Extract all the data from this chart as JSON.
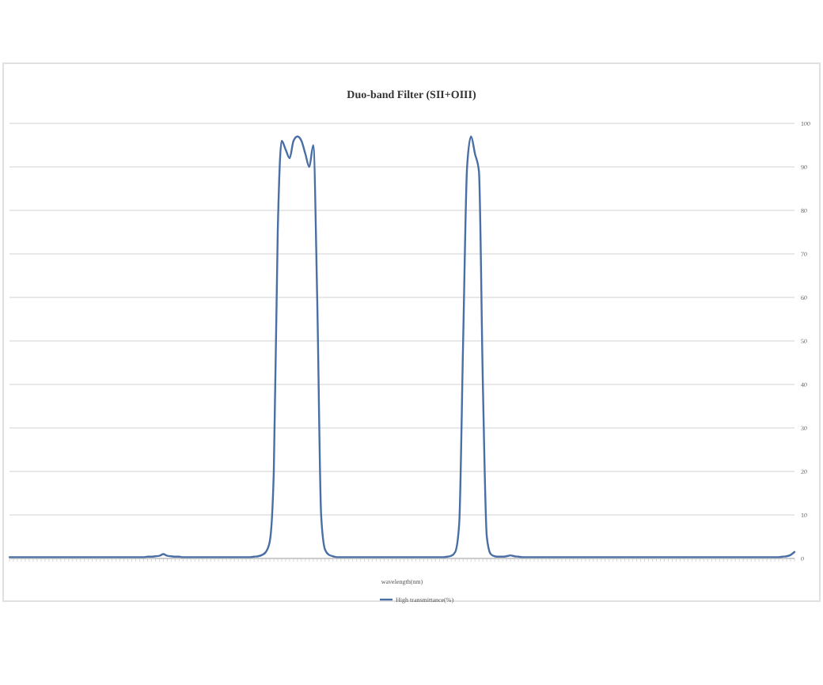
{
  "chart_data": {
    "type": "line",
    "title": "Duo-band Filter (SII+OIII)",
    "xlabel": "wavelength(nm)",
    "ylim": [
      0,
      100
    ],
    "yticks": [
      0,
      10,
      20,
      30,
      40,
      50,
      60,
      70,
      80,
      90,
      100
    ],
    "grid": "y",
    "legend": "bottom",
    "categories": [
      null,
      null,
      null,
      null,
      null,
      null,
      null,
      null,
      null,
      null,
      null,
      null,
      null,
      null,
      null,
      null,
      null,
      null,
      null,
      null,
      null,
      null,
      null,
      null,
      null,
      null,
      null,
      null,
      null,
      null,
      null,
      null,
      null,
      null,
      null,
      null,
      null,
      null,
      null,
      null,
      null,
      null,
      null,
      null,
      null,
      null,
      null,
      null,
      null,
      null,
      null,
      null,
      null,
      null,
      null,
      null,
      null,
      null,
      null,
      null,
      null,
      null,
      null,
      null,
      null,
      null,
      null,
      null,
      null,
      null,
      null,
      null,
      null,
      null,
      null,
      null,
      null,
      null,
      null,
      null,
      null,
      null,
      null,
      null,
      null,
      null,
      null,
      null,
      null,
      null,
      null,
      null,
      null,
      null,
      null,
      null,
      null,
      null,
      null,
      null,
      null,
      null,
      null,
      null,
      null,
      null,
      null,
      null,
      null,
      null,
      null,
      null,
      null,
      null,
      null,
      null,
      null,
      null,
      null,
      null,
      null,
      null,
      null,
      null,
      null,
      null,
      null,
      null,
      null,
      null,
      null,
      null,
      null,
      null,
      null,
      null,
      null,
      null,
      null,
      null,
      null,
      null,
      null,
      null,
      null,
      null,
      null,
      null,
      null,
      null,
      null,
      null,
      null,
      null,
      null,
      null,
      null,
      null,
      null,
      null,
      null,
      null,
      null,
      null,
      null,
      null,
      null,
      null,
      null,
      null,
      null,
      null,
      null,
      null,
      null,
      null,
      null,
      null,
      null,
      null,
      null,
      null,
      null,
      null,
      null,
      null,
      null,
      null,
      null,
      null,
      null,
      null,
      null,
      null,
      null,
      null,
      null,
      null,
      null,
      null
    ],
    "series": [
      {
        "name": "High transmittance(%)",
        "color": "#4a6fa5",
        "values": [
          0.3,
          0.3,
          0.3,
          0.3,
          0.3,
          0.3,
          0.3,
          0.3,
          0.3,
          0.3,
          0.3,
          0.3,
          0.3,
          0.3,
          0.3,
          0.3,
          0.3,
          0.3,
          0.3,
          0.3,
          0.3,
          0.3,
          0.3,
          0.3,
          0.3,
          0.3,
          0.3,
          0.3,
          0.3,
          0.3,
          0.3,
          0.3,
          0.3,
          0.3,
          0.3,
          0.4,
          0.4,
          0.5,
          0.6,
          1.0,
          0.6,
          0.5,
          0.4,
          0.4,
          0.3,
          0.3,
          0.3,
          0.3,
          0.3,
          0.3,
          0.3,
          0.3,
          0.3,
          0.3,
          0.3,
          0.3,
          0.3,
          0.3,
          0.3,
          0.3,
          0.3,
          0.3,
          0.4,
          0.5,
          0.8,
          1.5,
          4,
          20,
          75,
          96,
          94,
          92,
          96,
          97,
          96,
          93,
          90,
          95,
          60,
          10,
          2,
          0.8,
          0.5,
          0.3,
          0.3,
          0.3,
          0.3,
          0.3,
          0.3,
          0.3,
          0.3,
          0.3,
          0.3,
          0.3,
          0.3,
          0.3,
          0.3,
          0.3,
          0.3,
          0.3,
          0.3,
          0.3,
          0.3,
          0.3,
          0.3,
          0.3,
          0.3,
          0.3,
          0.3,
          0.3,
          0.3,
          0.4,
          0.6,
          1.5,
          8,
          50,
          90,
          97,
          93,
          89,
          40,
          5,
          1,
          0.5,
          0.4,
          0.4,
          0.5,
          0.7,
          0.5,
          0.4,
          0.3,
          0.3,
          0.3,
          0.3,
          0.3,
          0.3,
          0.3,
          0.3,
          0.3,
          0.3,
          0.3,
          0.3,
          0.3,
          0.3,
          0.3,
          0.3,
          0.3,
          0.3,
          0.3,
          0.3,
          0.3,
          0.3,
          0.3,
          0.3,
          0.3,
          0.3,
          0.3,
          0.3,
          0.3,
          0.3,
          0.3,
          0.3,
          0.3,
          0.3,
          0.3,
          0.3,
          0.3,
          0.3,
          0.3,
          0.3,
          0.3,
          0.3,
          0.3,
          0.3,
          0.3,
          0.3,
          0.3,
          0.3,
          0.3,
          0.3,
          0.3,
          0.3,
          0.3,
          0.3,
          0.3,
          0.3,
          0.3,
          0.3,
          0.3,
          0.3,
          0.3,
          0.3,
          0.3,
          0.3,
          0.3,
          0.3,
          0.4,
          0.5,
          0.8,
          1.5
        ]
      }
    ]
  }
}
